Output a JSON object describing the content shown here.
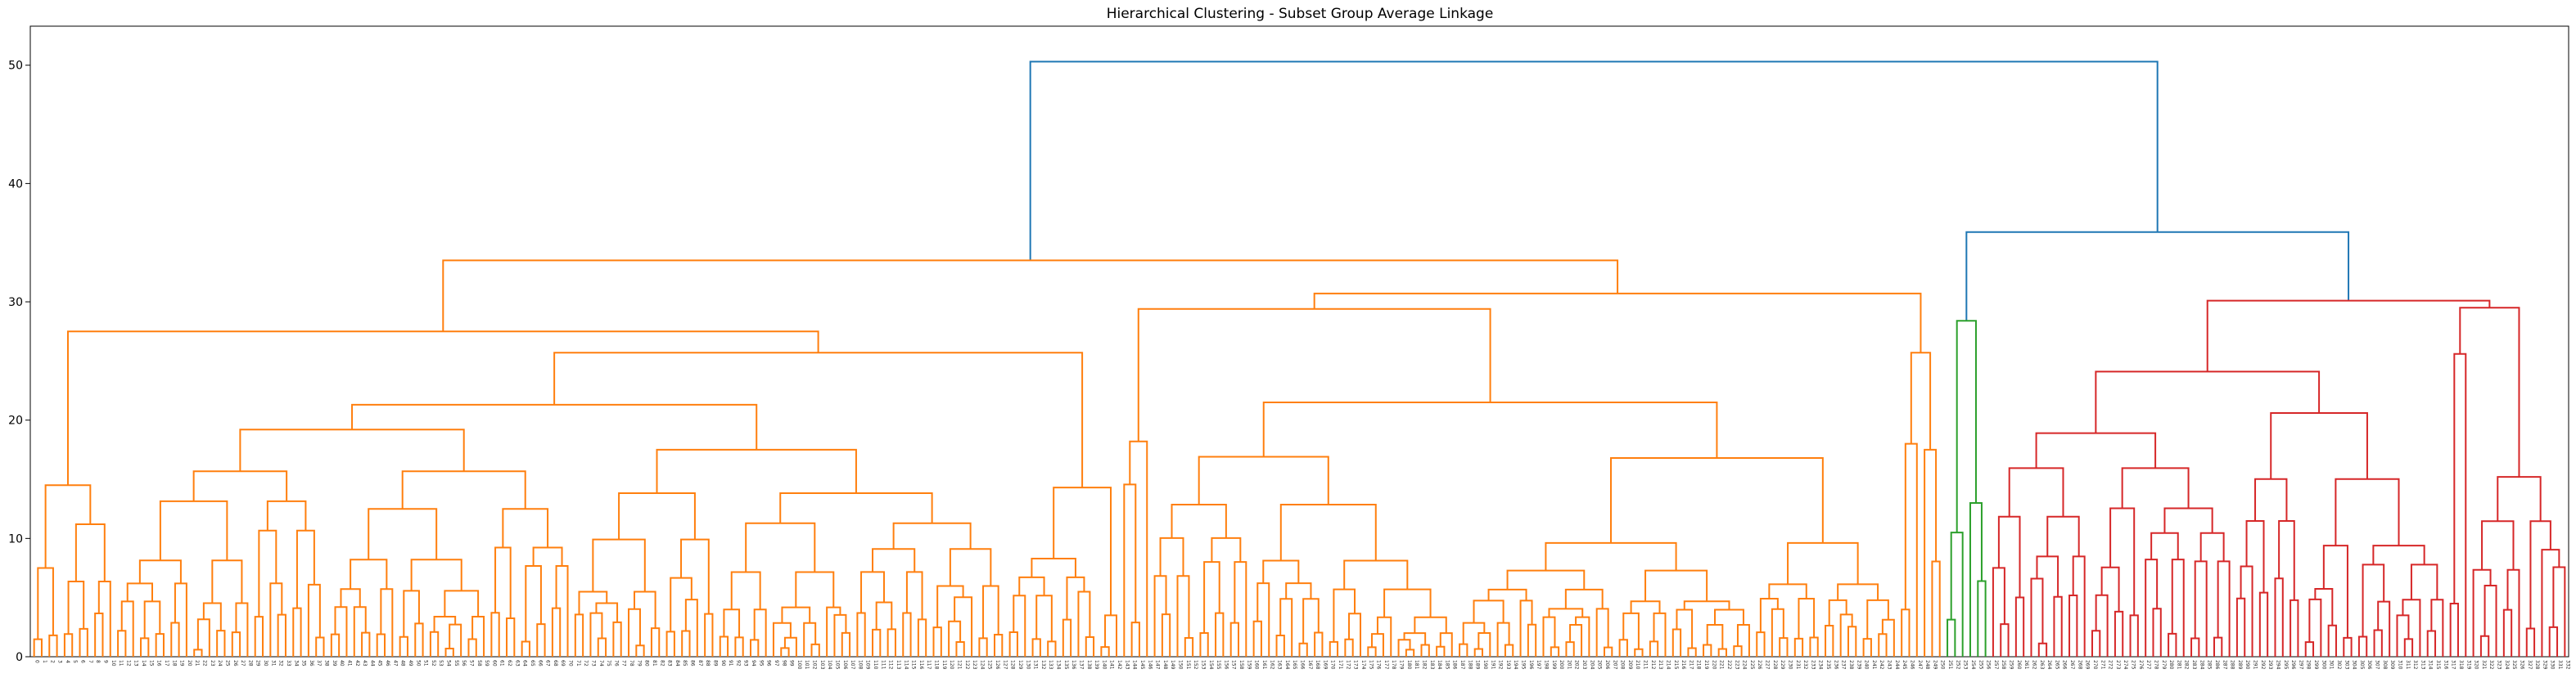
{
  "chart_data": {
    "type": "dendrogram",
    "title": "Hierarchical Clustering - Subset Group Average Linkage",
    "xlabel": "",
    "ylabel": "",
    "ylim": [
      0,
      53.3
    ],
    "yticks": [
      0,
      10,
      20,
      30,
      40,
      50
    ],
    "grid": false,
    "legend": "none",
    "leaf_count": 313,
    "colors": {
      "cluster_1": "#ff7f0e",
      "cluster_2": "#2ca02c",
      "cluster_3": "#d62728",
      "above_threshold": "#1f77b4"
    },
    "top_merges": [
      {
        "height": 50.3,
        "between": [
          "cluster_1",
          "cluster_2 + cluster_3"
        ]
      },
      {
        "height": 35.9,
        "between": [
          "cluster_2",
          "cluster_3"
        ]
      },
      {
        "height": 33.5,
        "within": "cluster_1"
      },
      {
        "height": 30.7,
        "within": "cluster_1"
      },
      {
        "height": 30.1,
        "within": "cluster_3"
      },
      {
        "height": 29.5,
        "within": "cluster_3"
      },
      {
        "height": 29.4,
        "within": "cluster_1"
      },
      {
        "height": 28.4,
        "within": "cluster_2"
      },
      {
        "height": 27.5,
        "within": "cluster_1"
      },
      {
        "height": 25.7,
        "within": "cluster_1"
      },
      {
        "height": 24.1,
        "within": "cluster_3"
      },
      {
        "height": 21.5,
        "within": "cluster_1"
      },
      {
        "height": 21.3,
        "within": "cluster_1"
      }
    ]
  }
}
